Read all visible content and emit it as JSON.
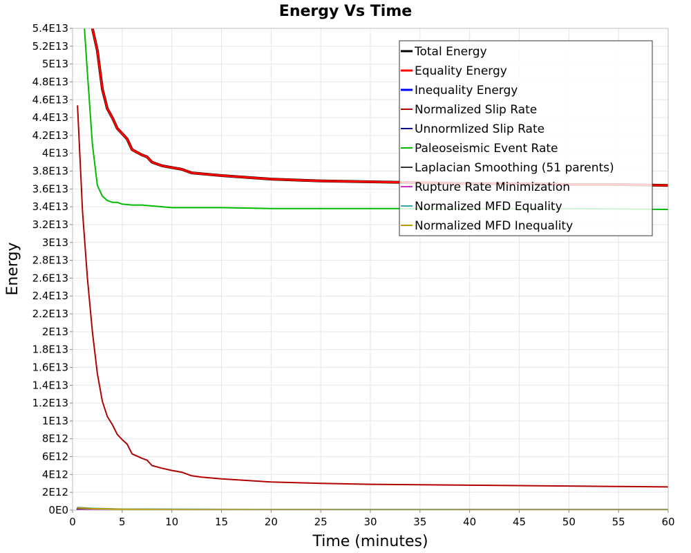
{
  "chart_data": {
    "type": "line",
    "title": "Energy Vs Time",
    "xlabel": "Time (minutes)",
    "ylabel": "Energy",
    "xlim": [
      0,
      60
    ],
    "ylim": [
      0,
      54000000000000
    ],
    "xticks": [
      0,
      5,
      10,
      15,
      20,
      25,
      30,
      35,
      40,
      45,
      50,
      55,
      60
    ],
    "xtick_labels": [
      "0",
      "5",
      "10",
      "15",
      "20",
      "25",
      "30",
      "35",
      "40",
      "45",
      "50",
      "55",
      "60"
    ],
    "yticks": [
      0,
      2000000000000.0,
      4000000000000.0,
      6000000000000.0,
      8000000000000.0,
      10000000000000.0,
      12000000000000.0,
      14000000000000.0,
      16000000000000.0,
      18000000000000.0,
      20000000000000.0,
      22000000000000.0,
      24000000000000.0,
      26000000000000.0,
      28000000000000.0,
      30000000000000.0,
      32000000000000.0,
      34000000000000.0,
      36000000000000.0,
      38000000000000.0,
      40000000000000.0,
      42000000000000.0,
      44000000000000.0,
      46000000000000.0,
      48000000000000.0,
      50000000000000.0,
      52000000000000.0,
      54000000000000.0
    ],
    "ytick_labels": [
      "0E0",
      "2E12",
      "4E12",
      "6E12",
      "8E12",
      "1E13",
      "1.2E13",
      "1.4E13",
      "1.6E13",
      "1.8E13",
      "2E13",
      "2.2E13",
      "2.4E13",
      "2.6E13",
      "2.8E13",
      "3E13",
      "3.2E13",
      "3.4E13",
      "3.6E13",
      "3.8E13",
      "4E13",
      "4.2E13",
      "4.4E13",
      "4.6E13",
      "4.8E13",
      "5E13",
      "5.2E13",
      "5.4E13"
    ],
    "grid": true,
    "legend_position": "top-right",
    "series": [
      {
        "name": "Total Energy",
        "color": "#000000",
        "width": 4,
        "x": [
          2.0,
          2.5,
          3.0,
          3.5,
          4.0,
          4.5,
          5.0,
          5.5,
          6.0,
          7.0,
          7.5,
          8.0,
          9.0,
          10.0,
          11.0,
          12.0,
          13.0,
          15.0,
          20.0,
          25.0,
          30.0,
          35.0,
          40.0,
          45.0,
          50.0,
          55.0,
          60.0
        ],
        "y": [
          54000000000000.0,
          51500000000000.0,
          47200000000000.0,
          45000000000000.0,
          44000000000000.0,
          42800000000000.0,
          42200000000000.0,
          41600000000000.0,
          40400000000000.0,
          39800000000000.0,
          39600000000000.0,
          39000000000000.0,
          38600000000000.0,
          38400000000000.0,
          38200000000000.0,
          37800000000000.0,
          37700000000000.0,
          37500000000000.0,
          37100000000000.0,
          36900000000000.0,
          36800000000000.0,
          36700000000000.0,
          36600000000000.0,
          36600000000000.0,
          36500000000000.0,
          36500000000000.0,
          36400000000000.0
        ]
      },
      {
        "name": "Equality Energy",
        "color": "#ff0000",
        "width": 3,
        "x": [
          2.0,
          2.5,
          3.0,
          3.5,
          4.0,
          4.5,
          5.0,
          5.5,
          6.0,
          7.0,
          7.5,
          8.0,
          9.0,
          10.0,
          11.0,
          12.0,
          13.0,
          15.0,
          20.0,
          25.0,
          30.0,
          35.0,
          40.0,
          45.0,
          50.0,
          55.0,
          60.0
        ],
        "y": [
          54000000000000.0,
          51500000000000.0,
          47200000000000.0,
          45000000000000.0,
          44000000000000.0,
          42800000000000.0,
          42200000000000.0,
          41600000000000.0,
          40400000000000.0,
          39800000000000.0,
          39600000000000.0,
          39000000000000.0,
          38600000000000.0,
          38400000000000.0,
          38200000000000.0,
          37800000000000.0,
          37700000000000.0,
          37500000000000.0,
          37100000000000.0,
          36900000000000.0,
          36800000000000.0,
          36700000000000.0,
          36600000000000.0,
          36600000000000.0,
          36500000000000.0,
          36500000000000.0,
          36400000000000.0
        ]
      },
      {
        "name": "Inequality Energy",
        "color": "#0000ff",
        "width": 3,
        "x": [
          0.5,
          2.0,
          5.0,
          10.0,
          20.0,
          40.0,
          60.0
        ],
        "y": [
          100000000000.0,
          80000000000.0,
          60000000000.0,
          50000000000.0,
          40000000000.0,
          30000000000.0,
          30000000000.0
        ]
      },
      {
        "name": "Normalized Slip Rate",
        "color": "#b00000",
        "width": 2,
        "x": [
          0.5,
          1.0,
          1.5,
          2.0,
          2.5,
          3.0,
          3.5,
          4.0,
          4.5,
          5.0,
          5.5,
          6.0,
          7.0,
          7.5,
          8.0,
          9.0,
          10.0,
          11.0,
          12.0,
          13.0,
          15.0,
          20.0,
          25.0,
          30.0,
          35.0,
          40.0,
          45.0,
          50.0,
          55.0,
          60.0
        ],
        "y": [
          45300000000000.0,
          33500000000000.0,
          26000000000000.0,
          20000000000000.0,
          15300000000000.0,
          12200000000000.0,
          10500000000000.0,
          9600000000000.0,
          8500000000000.0,
          7900000000000.0,
          7400000000000.0,
          6300000000000.0,
          5800000000000.0,
          5600000000000.0,
          5000000000000.0,
          4700000000000.0,
          4450000000000.0,
          4250000000000.0,
          3850000000000.0,
          3700000000000.0,
          3500000000000.0,
          3150000000000.0,
          3000000000000.0,
          2900000000000.0,
          2850000000000.0,
          2800000000000.0,
          2750000000000.0,
          2700000000000.0,
          2650000000000.0,
          2600000000000.0
        ]
      },
      {
        "name": "Unnormlized Slip Rate",
        "color": "#000080",
        "width": 2,
        "x": [
          0.5,
          2.0,
          5.0,
          10.0,
          20.0,
          40.0,
          60.0
        ],
        "y": [
          150000000000.0,
          100000000000.0,
          60000000000.0,
          50000000000.0,
          40000000000.0,
          30000000000.0,
          30000000000.0
        ]
      },
      {
        "name": "Paleoseismic Event Rate",
        "color": "#00bb00",
        "width": 2,
        "x": [
          1.2,
          1.5,
          2.0,
          2.5,
          3.0,
          3.5,
          4.0,
          4.5,
          5.0,
          6.0,
          7.0,
          8.0,
          9.0,
          10.0,
          12.0,
          13.0,
          15.0,
          20.0,
          25.0,
          30.0,
          40.0,
          50.0,
          60.0
        ],
        "y": [
          54000000000000.0,
          49000000000000.0,
          41000000000000.0,
          36400000000000.0,
          35200000000000.0,
          34700000000000.0,
          34500000000000.0,
          34500000000000.0,
          34300000000000.0,
          34200000000000.0,
          34200000000000.0,
          34100000000000.0,
          34000000000000.0,
          33900000000000.0,
          33900000000000.0,
          33900000000000.0,
          33900000000000.0,
          33800000000000.0,
          33800000000000.0,
          33800000000000.0,
          33800000000000.0,
          33800000000000.0,
          33700000000000.0
        ]
      },
      {
        "name": "Laplacian Smoothing (51 parents)",
        "color": "#333333",
        "width": 2,
        "x": [
          0.5,
          2.0,
          5.0,
          10.0,
          20.0,
          40.0,
          60.0
        ],
        "y": [
          200000000000.0,
          150000000000.0,
          100000000000.0,
          80000000000.0,
          60000000000.0,
          50000000000.0,
          50000000000.0
        ]
      },
      {
        "name": "Rupture Rate Minimization",
        "color": "#cc33cc",
        "width": 2,
        "x": [
          0.5,
          10.0,
          60.0
        ],
        "y": [
          20000000000.0,
          10000000000.0,
          10000000000.0
        ]
      },
      {
        "name": "Normalized MFD Equality",
        "color": "#33aaaa",
        "width": 2,
        "x": [
          0.5,
          2.0,
          5.0,
          10.0,
          20.0,
          40.0,
          60.0
        ],
        "y": [
          300000000000.0,
          200000000000.0,
          120000000000.0,
          90000000000.0,
          70000000000.0,
          60000000000.0,
          60000000000.0
        ]
      },
      {
        "name": "Normalized MFD Inequality",
        "color": "#bb9900",
        "width": 2,
        "x": [
          0.5,
          2.0,
          5.0,
          10.0,
          20.0,
          40.0,
          60.0
        ],
        "y": [
          250000000000.0,
          160000000000.0,
          90000000000.0,
          70000000000.0,
          50000000000.0,
          40000000000.0,
          40000000000.0
        ]
      }
    ]
  }
}
